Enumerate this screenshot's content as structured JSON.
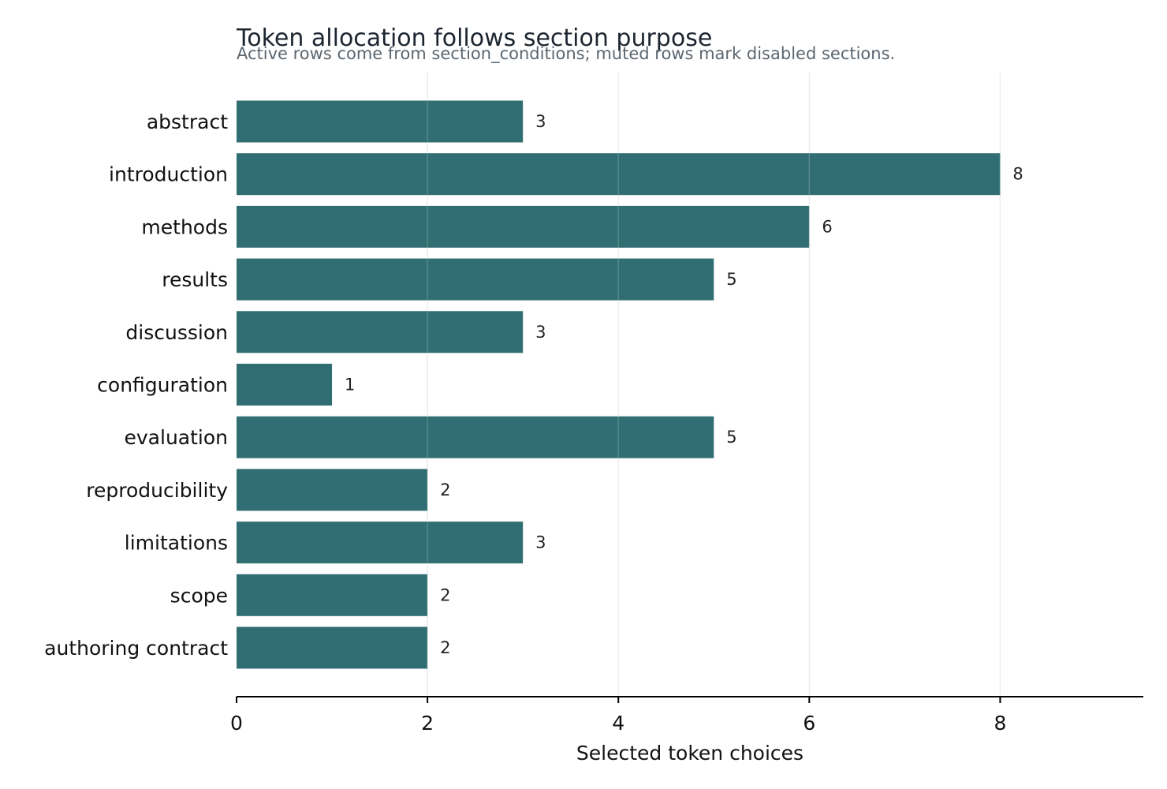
{
  "chart_data": {
    "type": "bar",
    "orientation": "horizontal",
    "title": "Token allocation follows section purpose",
    "subtitle": "Active rows come from section_conditions; muted rows mark disabled sections.",
    "xlabel": "Selected token choices",
    "ylabel": "",
    "xlim": [
      0,
      9.5
    ],
    "xticks": [
      0,
      2,
      4,
      6,
      8
    ],
    "grid": "vertical",
    "categories": [
      "abstract",
      "introduction",
      "methods",
      "results",
      "discussion",
      "configuration",
      "evaluation",
      "reproducibility",
      "limitations",
      "scope",
      "authoring contract"
    ],
    "values": [
      3,
      8,
      6,
      5,
      3,
      1,
      5,
      2,
      3,
      2,
      2
    ],
    "colors": {
      "bar": "#316e73",
      "grid": "#e8eaec",
      "axis": "#000000"
    }
  }
}
